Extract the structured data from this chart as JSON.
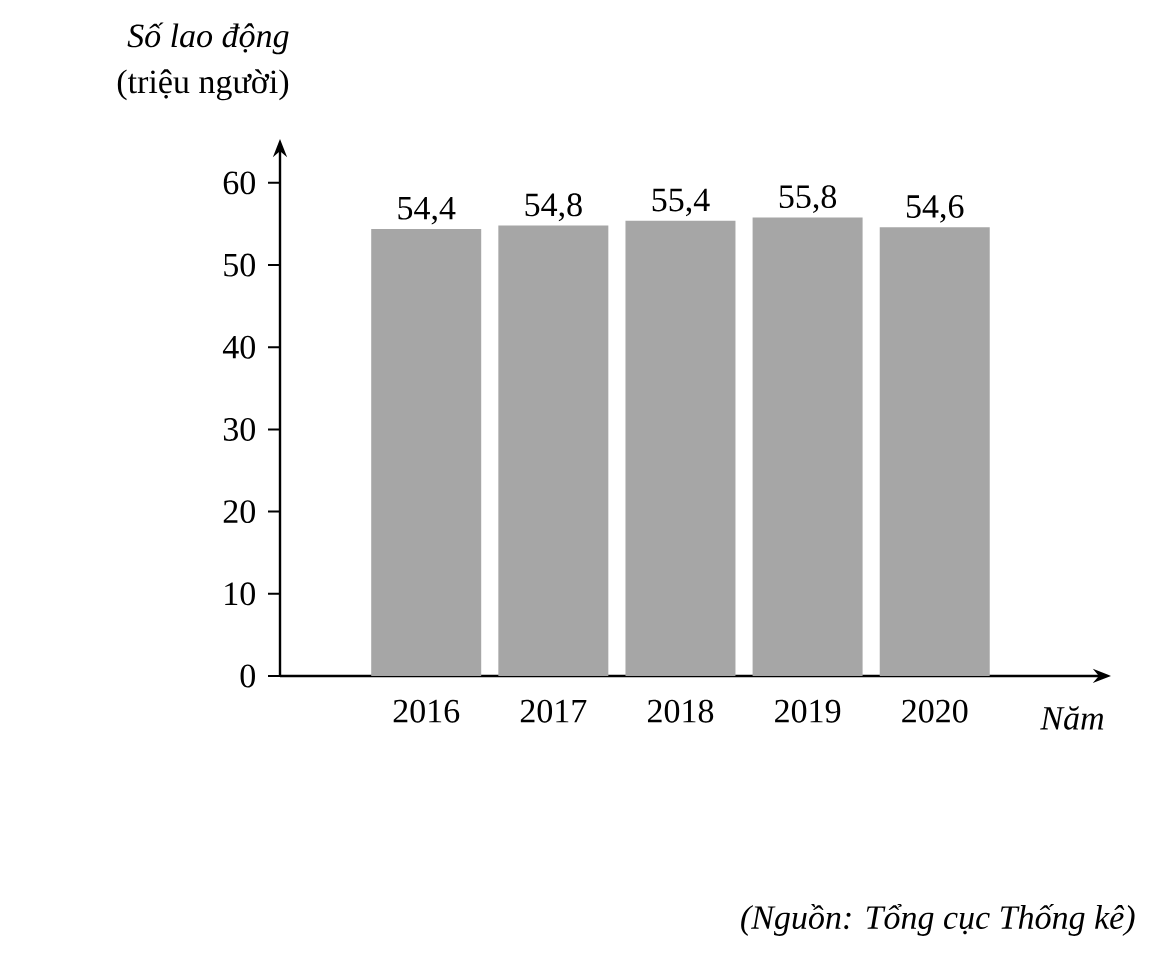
{
  "chart_data": {
    "type": "bar",
    "ylabel": "*Số lao động* (triệu người)",
    "xlabel": "Năm",
    "categories": [
      "2016",
      "2017",
      "2018",
      "2019",
      "2020"
    ],
    "values": [
      54.4,
      54.8,
      55.4,
      55.8,
      54.6
    ],
    "value_labels": [
      "54,4",
      "54,8",
      "55,4",
      "55,8",
      "54,6"
    ],
    "color": "#a6a6a6",
    "ylim": [
      0,
      64
    ],
    "yticks": [
      0,
      10,
      20,
      30,
      40,
      50,
      60
    ],
    "annotations": [
      "(Nguồn: Tổng cục Thống kê)"
    ]
  }
}
